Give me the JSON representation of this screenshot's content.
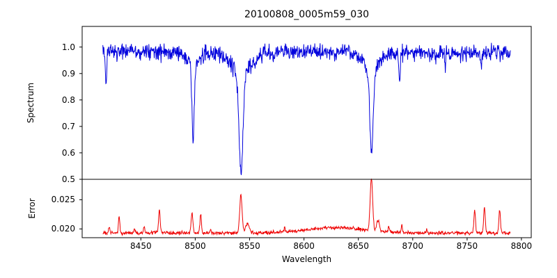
{
  "chart_data": {
    "type": "line",
    "title": "20100808_0005m59_030",
    "background": "#ffffff",
    "axis_color": "#000000",
    "x": {
      "label": "Wavelength",
      "lim": [
        8396,
        8809
      ],
      "data_range": [
        8415,
        8790
      ],
      "ticks": [
        8450,
        8500,
        8550,
        8600,
        8650,
        8700,
        8750,
        8800
      ],
      "tick_labels": [
        "8450",
        "8500",
        "8550",
        "8600",
        "8650",
        "8700",
        "8750",
        "8800"
      ]
    },
    "panels": [
      {
        "name": "spectrum",
        "ylabel": "Spectrum",
        "color": "#0000dd",
        "ylim": [
          0.5,
          1.078
        ],
        "yticks": [
          1.0,
          0.9,
          0.8,
          0.7,
          0.6,
          0.5
        ],
        "ytick_labels": [
          "1.0",
          "0.9",
          "0.8",
          "0.7",
          "0.6",
          "0.5"
        ],
        "continuum": 0.978,
        "noise_sigma": 0.015,
        "wing_depth_factor": 0.18,
        "wing_width_factor": 5,
        "absorption_lines": [
          {
            "center": 8418.0,
            "depth": 0.11,
            "width": 0.9
          },
          {
            "center": 8498.0,
            "depth": 0.27,
            "width": 1.4
          },
          {
            "center": 8542.1,
            "depth": 0.38,
            "width": 2.6
          },
          {
            "center": 8662.1,
            "depth": 0.325,
            "width": 2.2
          },
          {
            "center": 8688.0,
            "depth": 0.09,
            "width": 0.9
          },
          {
            "center": 8730.0,
            "depth": 0.055,
            "width": 0.8
          },
          {
            "center": 8763.0,
            "depth": 0.075,
            "width": 0.8
          }
        ]
      },
      {
        "name": "error",
        "ylabel": "Error",
        "color": "#ee0000",
        "ylim": [
          0.0185,
          0.0285
        ],
        "yticks": [
          0.025,
          0.02
        ],
        "ytick_labels": [
          "0.025",
          "0.020"
        ],
        "baseline": 0.0193,
        "noise_sigma": 0.00015,
        "broad_hump": {
          "center": 8628,
          "amp": 0.0009,
          "width": 38
        },
        "spikes": [
          {
            "center": 8421,
            "amp": 0.001,
            "width": 0.8
          },
          {
            "center": 8430,
            "amp": 0.003,
            "width": 0.9
          },
          {
            "center": 8444,
            "amp": 0.0008,
            "width": 0.8
          },
          {
            "center": 8453,
            "amp": 0.0012,
            "width": 0.8
          },
          {
            "center": 8467,
            "amp": 0.004,
            "width": 1.0
          },
          {
            "center": 8497,
            "amp": 0.0034,
            "width": 1.2
          },
          {
            "center": 8505,
            "amp": 0.0031,
            "width": 1.0
          },
          {
            "center": 8514,
            "amp": 0.0008,
            "width": 0.8
          },
          {
            "center": 8542,
            "amp": 0.0066,
            "width": 1.6
          },
          {
            "center": 8548,
            "amp": 0.0016,
            "width": 2.5
          },
          {
            "center": 8582,
            "amp": 0.0006,
            "width": 1.0
          },
          {
            "center": 8662,
            "amp": 0.009,
            "width": 1.6
          },
          {
            "center": 8668,
            "amp": 0.0018,
            "width": 2.0
          },
          {
            "center": 8678,
            "amp": 0.001,
            "width": 1.0
          },
          {
            "center": 8690,
            "amp": 0.0013,
            "width": 0.9
          },
          {
            "center": 8713,
            "amp": 0.0006,
            "width": 0.8
          },
          {
            "center": 8757,
            "amp": 0.0038,
            "width": 1.1
          },
          {
            "center": 8766,
            "amp": 0.0043,
            "width": 1.1
          },
          {
            "center": 8780,
            "amp": 0.004,
            "width": 1.0
          }
        ]
      }
    ]
  }
}
